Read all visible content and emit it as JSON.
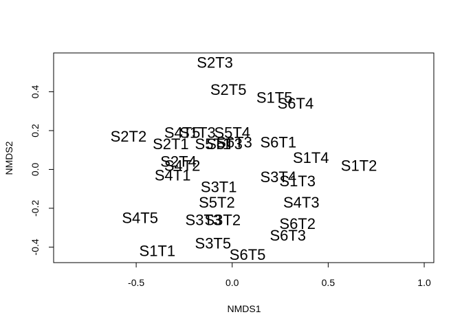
{
  "chart_data": {
    "type": "scatter",
    "title": "",
    "xlabel": "NMDS1",
    "ylabel": "NMDS2",
    "xlim": [
      -0.93,
      1.05
    ],
    "ylim": [
      -0.48,
      0.6
    ],
    "x_ticks": [
      -0.5,
      0.0,
      0.5,
      1.0
    ],
    "y_ticks": [
      -0.4,
      -0.2,
      0.0,
      0.2,
      0.4
    ],
    "x_tick_labels": [
      "-0.5",
      "0.0",
      "0.5",
      "1.0"
    ],
    "y_tick_labels": [
      "-0.4",
      "-0.2",
      "0.0",
      "0.2",
      "0.4"
    ],
    "grid": false,
    "legend": "none",
    "points": [
      {
        "label": "S2T3",
        "x": -0.09,
        "y": 0.55
      },
      {
        "label": "S2T5",
        "x": -0.02,
        "y": 0.41
      },
      {
        "label": "S1T5",
        "x": 0.22,
        "y": 0.37
      },
      {
        "label": "S6T4",
        "x": 0.33,
        "y": 0.34
      },
      {
        "label": "S2T2",
        "x": -0.54,
        "y": 0.17
      },
      {
        "label": "S4T5",
        "x": -0.26,
        "y": 0.19
      },
      {
        "label": "S1T3",
        "x": -0.18,
        "y": 0.19
      },
      {
        "label": "S5T4",
        "x": 0.0,
        "y": 0.19
      },
      {
        "label": "S5T3",
        "x": -0.04,
        "y": 0.13
      },
      {
        "label": "S5T1",
        "x": -0.1,
        "y": 0.13
      },
      {
        "label": "S6T3",
        "x": 0.01,
        "y": 0.14
      },
      {
        "label": "S2T1",
        "x": -0.32,
        "y": 0.13
      },
      {
        "label": "S6T1",
        "x": 0.24,
        "y": 0.14
      },
      {
        "label": "S1T4",
        "x": 0.41,
        "y": 0.06
      },
      {
        "label": "S1T2",
        "x": 0.66,
        "y": 0.02
      },
      {
        "label": "S2T4",
        "x": -0.28,
        "y": 0.04
      },
      {
        "label": "S4T2",
        "x": -0.26,
        "y": 0.02
      },
      {
        "label": "S4T1",
        "x": -0.31,
        "y": -0.03
      },
      {
        "label": "S3T4",
        "x": 0.24,
        "y": -0.04
      },
      {
        "label": "S1T3",
        "x": 0.34,
        "y": -0.06
      },
      {
        "label": "S3T1",
        "x": -0.07,
        "y": -0.09
      },
      {
        "label": "S4T3",
        "x": 0.36,
        "y": -0.17
      },
      {
        "label": "S5T2",
        "x": -0.08,
        "y": -0.17
      },
      {
        "label": "S4T5",
        "x": -0.48,
        "y": -0.25
      },
      {
        "label": "S3T3",
        "x": -0.15,
        "y": -0.26
      },
      {
        "label": "S3T2",
        "x": -0.05,
        "y": -0.26
      },
      {
        "label": "S6T2",
        "x": 0.34,
        "y": -0.28
      },
      {
        "label": "S6T3",
        "x": 0.29,
        "y": -0.34
      },
      {
        "label": "S3T5",
        "x": -0.1,
        "y": -0.38
      },
      {
        "label": "S1T1",
        "x": -0.39,
        "y": -0.42
      },
      {
        "label": "S6T5",
        "x": 0.08,
        "y": -0.44
      }
    ]
  }
}
